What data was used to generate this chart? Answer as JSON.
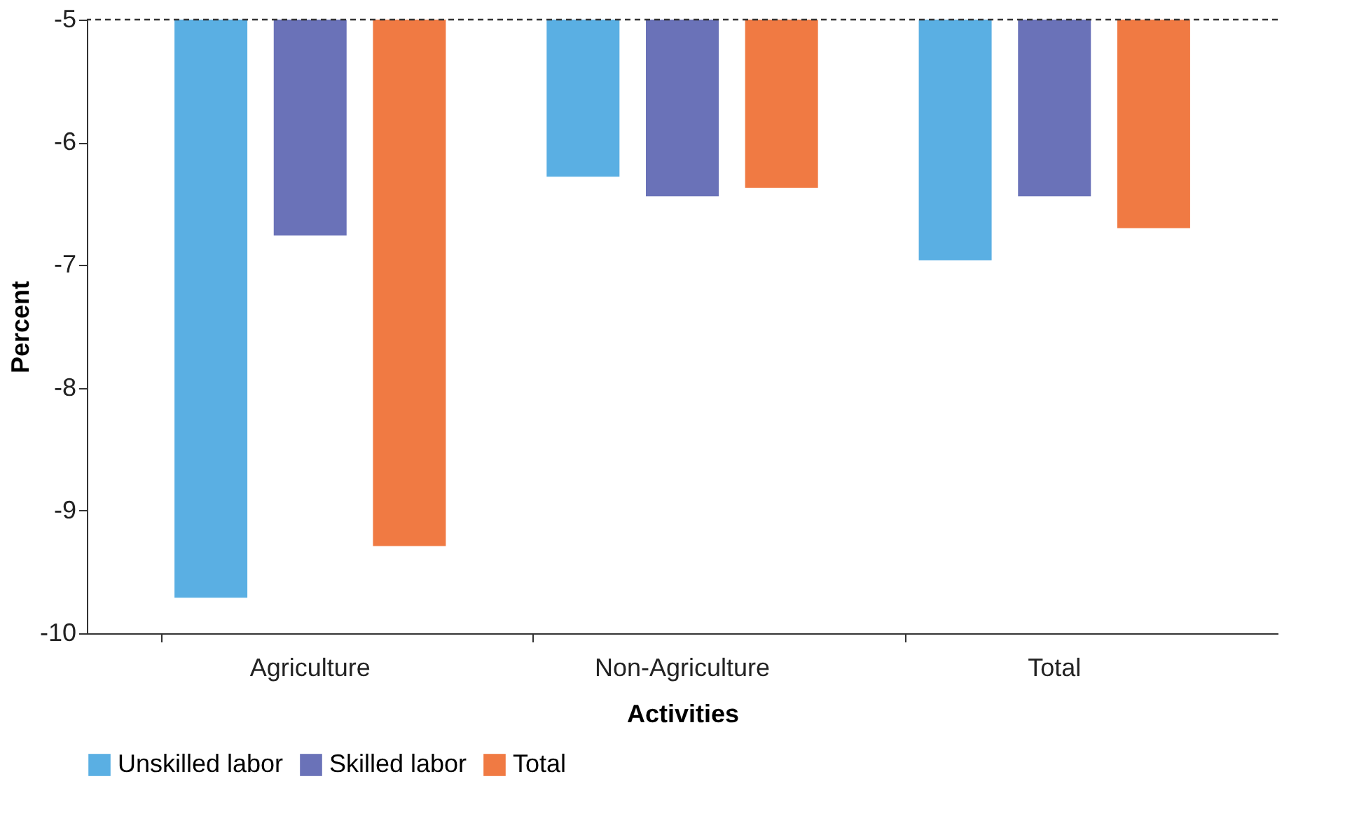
{
  "chart_data": {
    "type": "bar",
    "xlabel": "Activities",
    "ylabel": "Percent",
    "categories": [
      "Agriculture",
      "Non-Agriculture",
      "Total"
    ],
    "series": [
      {
        "name": "Unskilled labor",
        "color": "#5aafe3",
        "values": [
          -9.71,
          -6.28,
          -6.96
        ]
      },
      {
        "name": "Skilled labor",
        "color": "#6a72b8",
        "values": [
          -6.76,
          -6.44,
          -6.44
        ]
      },
      {
        "name": "Total",
        "color": "#f07a43",
        "values": [
          -9.29,
          -6.37,
          -6.7
        ]
      }
    ],
    "ylim": [
      -10,
      -5
    ],
    "yticks": [
      -10,
      -9,
      -8,
      -7,
      -6,
      -5
    ],
    "grid": false,
    "legend": "bottom",
    "ref_lines": [
      {
        "axis": "y",
        "value": -5,
        "line_style": "dashed",
        "color": "#333333"
      }
    ]
  }
}
